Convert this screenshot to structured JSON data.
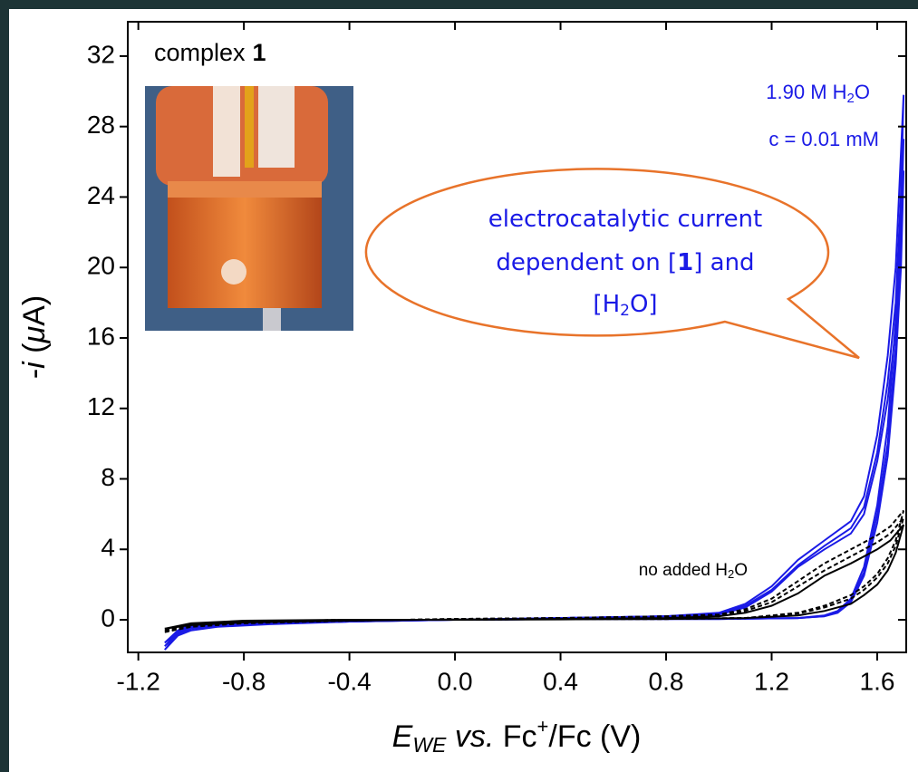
{
  "chart_data": {
    "type": "line",
    "xlabel": {
      "parts": [
        "E",
        "WE",
        " vs.",
        " Fc",
        "+",
        "/Fc (V)"
      ]
    },
    "ylabel": {
      "parts": [
        "-",
        "i",
        " (",
        "μ",
        "A)"
      ]
    },
    "xlim": [
      -1.24,
      1.71
    ],
    "ylim": [
      -1.85,
      33.95
    ],
    "xticks": [
      -1.2,
      -0.8,
      -0.4,
      {
        "value": 0,
        "label": "0.0"
      },
      0.4,
      0.8,
      1.2,
      1.6
    ],
    "yticks": [
      0,
      4,
      8,
      12,
      16,
      20,
      24,
      28,
      32
    ],
    "annotations": {
      "sample": [
        "complex",
        "1"
      ],
      "water": [
        "1.90 M H",
        "2",
        "O"
      ],
      "concentration": "c = 0.01 mM",
      "blank": [
        "no added H",
        "2",
        "O"
      ],
      "callout": [
        [
          "electrocatalytic current"
        ],
        [
          "dependent on [",
          "1",
          "] and"
        ],
        [
          "[H",
          "2",
          "O]"
        ]
      ]
    },
    "series": [
      {
        "color": "#1a1ae6",
        "dash": false,
        "x": [
          -1.1,
          -1.05,
          -1.0,
          -0.9,
          -0.7,
          -0.4,
          0,
          0.4,
          0.8,
          1.0,
          1.1,
          1.2,
          1.3,
          1.4,
          1.5,
          1.55,
          1.6,
          1.64,
          1.67,
          1.7,
          1.69,
          1.67,
          1.64,
          1.6,
          1.55,
          1.5,
          1.45,
          1.4,
          1.3,
          1.0,
          0.5,
          0,
          -0.5,
          -0.9,
          -1.0,
          -1.05,
          -1.1
        ],
        "values": [
          -1.7,
          -0.9,
          -0.6,
          -0.4,
          -0.25,
          -0.1,
          0,
          0.1,
          0.2,
          0.4,
          0.9,
          1.9,
          3.4,
          4.5,
          5.6,
          7,
          10.5,
          15,
          20,
          29.8,
          24,
          17,
          11,
          6.5,
          3,
          1.2,
          0.5,
          0.25,
          0.1,
          0.05,
          0.05,
          0,
          -0.05,
          -0.2,
          -0.4,
          -0.8,
          -1.7
        ]
      },
      {
        "color": "#1a1ae6",
        "dash": false,
        "x": [
          -1.1,
          -1.05,
          -1.0,
          -0.9,
          -0.7,
          -0.4,
          0,
          0.4,
          0.8,
          1.0,
          1.1,
          1.2,
          1.3,
          1.4,
          1.5,
          1.55,
          1.6,
          1.64,
          1.67,
          1.7,
          1.69,
          1.67,
          1.64,
          1.6,
          1.55,
          1.5,
          1.45,
          1.4,
          1.3,
          1.0,
          0.5,
          0,
          -0.5,
          -0.9,
          -1.0,
          -1.05,
          -1.1
        ],
        "values": [
          -1.5,
          -0.8,
          -0.5,
          -0.35,
          -0.2,
          -0.1,
          0,
          0.1,
          0.2,
          0.35,
          0.8,
          1.7,
          3.1,
          4.2,
          5.2,
          6.4,
          9.5,
          13.5,
          18,
          27.3,
          22,
          15.5,
          10,
          6,
          2.7,
          1.1,
          0.45,
          0.2,
          0.1,
          0.05,
          0.05,
          0,
          -0.05,
          -0.2,
          -0.35,
          -0.7,
          -1.5
        ]
      },
      {
        "color": "#1a1ae6",
        "dash": false,
        "x": [
          -1.1,
          -1.05,
          -1.0,
          -0.9,
          -0.7,
          -0.4,
          0,
          0.4,
          0.8,
          1.0,
          1.1,
          1.2,
          1.3,
          1.4,
          1.5,
          1.55,
          1.6,
          1.64,
          1.67,
          1.7,
          1.69,
          1.67,
          1.64,
          1.6,
          1.55,
          1.5,
          1.45,
          1.4,
          1.3,
          1.0,
          0.5,
          0,
          -0.5,
          -0.9,
          -1.0,
          -1.05,
          -1.1
        ],
        "values": [
          -1.3,
          -0.7,
          -0.45,
          -0.3,
          -0.2,
          -0.1,
          0,
          0.1,
          0.2,
          0.3,
          0.7,
          1.6,
          3.0,
          4.0,
          4.9,
          6,
          9,
          12.5,
          16.5,
          25.5,
          20,
          14.5,
          9.3,
          5.5,
          2.5,
          1.0,
          0.4,
          0.2,
          0.1,
          0.05,
          0.05,
          0,
          -0.05,
          -0.15,
          -0.3,
          -0.6,
          -1.3
        ]
      },
      {
        "color": "#000000",
        "dash": true,
        "x": [
          -1.1,
          -1.0,
          -0.8,
          -0.4,
          0,
          0.4,
          0.8,
          1.0,
          1.1,
          1.2,
          1.3,
          1.4,
          1.5,
          1.6,
          1.65,
          1.7,
          1.67,
          1.64,
          1.6,
          1.55,
          1.5,
          1.4,
          1.3,
          1.1,
          0.8,
          0.4,
          0,
          -0.4,
          -0.8,
          -1.0,
          -1.1
        ],
        "values": [
          -0.7,
          -0.4,
          -0.2,
          -0.05,
          0.05,
          0.1,
          0.2,
          0.3,
          0.6,
          1.2,
          2.2,
          3.2,
          4.0,
          4.8,
          5.3,
          6.2,
          4.5,
          3.5,
          2.6,
          1.9,
          1.4,
          0.8,
          0.4,
          0.1,
          0.05,
          0.05,
          0,
          0,
          -0.1,
          -0.3,
          -0.7
        ]
      },
      {
        "color": "#000000",
        "dash": true,
        "x": [
          -1.1,
          -1.0,
          -0.8,
          -0.4,
          0,
          0.4,
          0.8,
          1.0,
          1.1,
          1.2,
          1.3,
          1.4,
          1.5,
          1.6,
          1.65,
          1.7,
          1.67,
          1.64,
          1.6,
          1.55,
          1.5,
          1.4,
          1.3,
          1.1,
          0.8,
          0.4,
          0,
          -0.4,
          -0.8,
          -1.0,
          -1.1
        ],
        "values": [
          -0.6,
          -0.35,
          -0.18,
          -0.05,
          0.05,
          0.1,
          0.18,
          0.28,
          0.5,
          1.0,
          1.9,
          2.8,
          3.6,
          4.4,
          4.9,
          5.8,
          4.2,
          3.2,
          2.4,
          1.7,
          1.2,
          0.7,
          0.35,
          0.1,
          0.05,
          0.05,
          0,
          0,
          -0.1,
          -0.25,
          -0.6
        ]
      },
      {
        "color": "#000000",
        "dash": false,
        "x": [
          -1.1,
          -1.0,
          -0.8,
          -0.4,
          0,
          0.4,
          0.8,
          1.0,
          1.1,
          1.2,
          1.3,
          1.4,
          1.5,
          1.6,
          1.65,
          1.7,
          1.67,
          1.64,
          1.6,
          1.55,
          1.5,
          1.4,
          1.3,
          1.1,
          0.8,
          0.4,
          0,
          -0.4,
          -0.8,
          -1.0,
          -1.1
        ],
        "values": [
          -0.5,
          -0.3,
          -0.15,
          -0.05,
          0.02,
          0.05,
          0.1,
          0.2,
          0.4,
          0.8,
          1.5,
          2.5,
          3.2,
          4.0,
          4.5,
          5.4,
          3.8,
          2.8,
          2.0,
          1.4,
          0.9,
          0.5,
          0.25,
          0.1,
          0.05,
          0.02,
          0,
          0,
          -0.05,
          -0.2,
          -0.5
        ]
      }
    ]
  }
}
